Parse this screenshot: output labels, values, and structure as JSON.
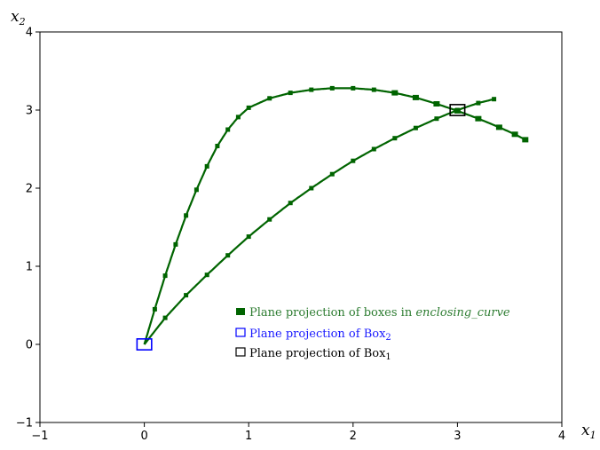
{
  "chart_data": {
    "type": "scatter",
    "title": "",
    "xlabel": "x",
    "xlabel_sub": "1",
    "ylabel": "x",
    "ylabel_sub": "2",
    "xlim": [
      -1,
      4
    ],
    "ylim": [
      -1,
      4
    ],
    "xticks": [
      "−1",
      "0",
      "1",
      "2",
      "3",
      "4"
    ],
    "yticks": [
      "−1",
      "0",
      "1",
      "2",
      "3",
      "4"
    ],
    "grid": false,
    "legend_position": "lower-center",
    "colors": {
      "enclosing_curve": "#006400",
      "box2": "#0000ff",
      "box1": "#000000"
    },
    "series": [
      {
        "name_prefix": "Plane projection of boxes in ",
        "name_emph": "enclosing_curve",
        "kind": "boxes",
        "branches": [
          {
            "label": "upper",
            "points": [
              [
                0,
                0
              ],
              [
                0.1,
                0.45
              ],
              [
                0.2,
                0.88
              ],
              [
                0.3,
                1.28
              ],
              [
                0.4,
                1.65
              ],
              [
                0.5,
                1.98
              ],
              [
                0.6,
                2.28
              ],
              [
                0.7,
                2.54
              ],
              [
                0.8,
                2.75
              ],
              [
                0.9,
                2.91
              ],
              [
                1.0,
                3.03
              ],
              [
                1.2,
                3.15
              ],
              [
                1.4,
                3.22
              ],
              [
                1.6,
                3.26
              ],
              [
                1.8,
                3.28
              ],
              [
                2.0,
                3.28
              ],
              [
                2.2,
                3.26
              ],
              [
                2.4,
                3.22
              ],
              [
                2.6,
                3.16
              ],
              [
                2.8,
                3.08
              ],
              [
                3.0,
                2.99
              ],
              [
                3.2,
                2.89
              ],
              [
                3.4,
                2.78
              ],
              [
                3.55,
                2.69
              ],
              [
                3.65,
                2.62
              ]
            ]
          },
          {
            "label": "lower",
            "points": [
              [
                0,
                0
              ],
              [
                0.2,
                0.34
              ],
              [
                0.4,
                0.63
              ],
              [
                0.6,
                0.89
              ],
              [
                0.8,
                1.14
              ],
              [
                1.0,
                1.38
              ],
              [
                1.2,
                1.6
              ],
              [
                1.4,
                1.81
              ],
              [
                1.6,
                2.0
              ],
              [
                1.8,
                2.18
              ],
              [
                2.0,
                2.35
              ],
              [
                2.2,
                2.5
              ],
              [
                2.4,
                2.64
              ],
              [
                2.6,
                2.77
              ],
              [
                2.8,
                2.89
              ],
              [
                3.0,
                3.0
              ],
              [
                3.2,
                3.09
              ],
              [
                3.35,
                3.14
              ]
            ]
          }
        ]
      },
      {
        "name_prefix": "Plane projection of Box",
        "name_sub": "2",
        "kind": "box",
        "center": [
          0,
          0
        ],
        "half_width": 0.07
      },
      {
        "name_prefix": "Plane projection of Box",
        "name_sub": "1",
        "kind": "box",
        "center": [
          3.0,
          3.0
        ],
        "half_width": 0.07
      }
    ]
  }
}
